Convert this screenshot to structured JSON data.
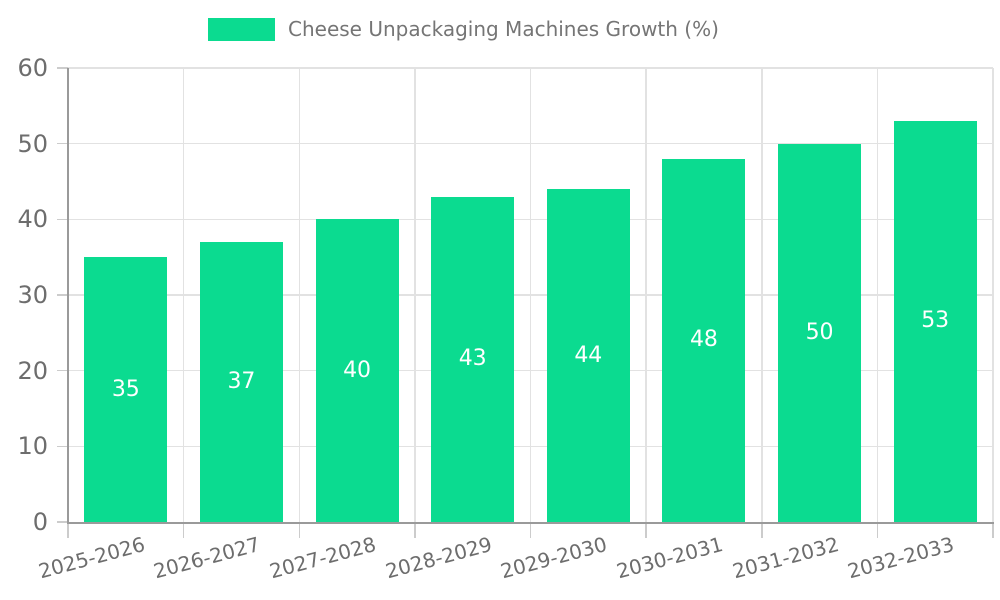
{
  "chart_data": {
    "type": "bar",
    "title": "",
    "categories": [
      "2025-2026",
      "2026-2027",
      "2027-2028",
      "2028-2029",
      "2029-2030",
      "2030-2031",
      "2031-2032",
      "2032-2033"
    ],
    "series": [
      {
        "name": "Cheese Unpackaging Machines Growth (%)",
        "values": [
          35,
          37,
          40,
          43,
          44,
          48,
          50,
          53
        ]
      }
    ],
    "value_labels_shown": true,
    "xlabel": "",
    "ylabel": "",
    "ylim": [
      0,
      60
    ],
    "yticks": [
      0,
      10,
      20,
      30,
      40,
      50,
      60
    ],
    "x_tick_rotation_deg": -15,
    "grid": true,
    "legend_position": "top",
    "colors": {
      "bar": "#0bdb90",
      "grid": "#e2e2e2",
      "axis": "#9a9a9a",
      "tick": "#cccccc",
      "tick_text": "#6d6d6d",
      "value_text": "#ffffff",
      "legend_text": "#757575",
      "background": "#ffffff"
    }
  }
}
